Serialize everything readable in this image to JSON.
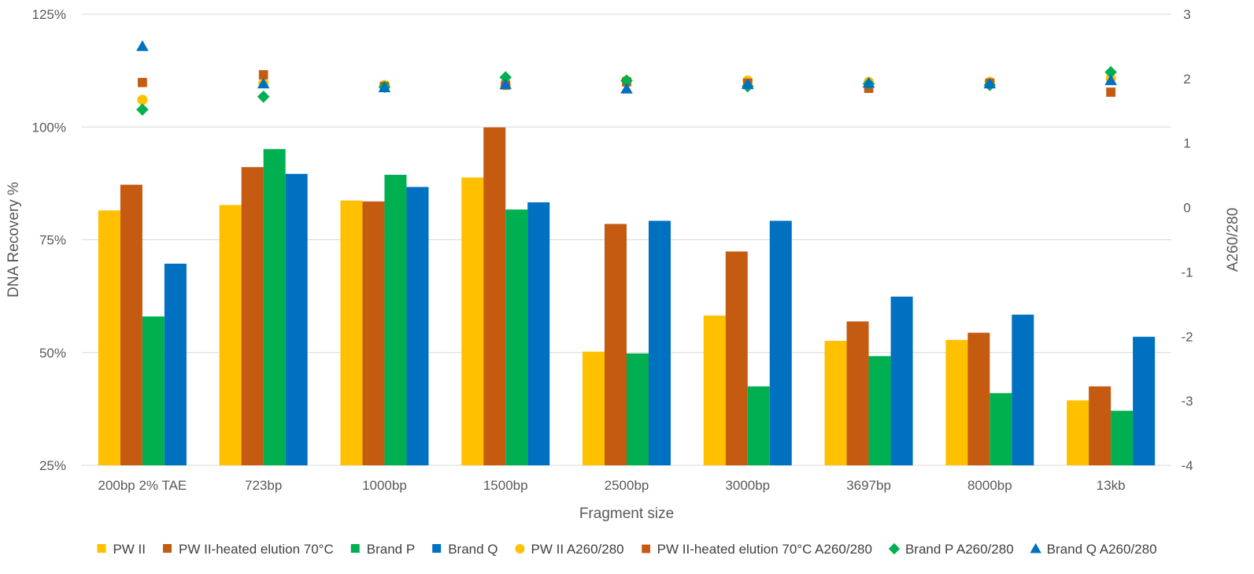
{
  "chart_data": {
    "type": "bar",
    "xlabel": "Fragment size",
    "ylabel": "DNA Recovery %",
    "y2label": "A260/280",
    "categories": [
      "200bp 2% TAE",
      "723bp",
      "1000bp",
      "1500bp",
      "2500bp",
      "3000bp",
      "3697bp",
      "8000bp",
      "13kb"
    ],
    "ylim": [
      25,
      125
    ],
    "yticks": [
      25,
      50,
      75,
      100,
      125
    ],
    "ytick_labels": [
      "25%",
      "50%",
      "75%",
      "100%",
      "125%"
    ],
    "y2lim": [
      -4,
      3
    ],
    "y2ticks": [
      -4,
      -3,
      -2,
      -1,
      0,
      1,
      2,
      3
    ],
    "y2tick_labels": [
      "-4",
      "-3",
      "-2",
      "-1",
      "0",
      "1",
      "2",
      "3"
    ],
    "grid": true,
    "legend_position": "bottom",
    "bar_series": [
      {
        "name": "PW II",
        "color": "#FFC000",
        "values": [
          81.5,
          82.7,
          83.7,
          88.8,
          50.2,
          58.2,
          52.6,
          52.8,
          39.4
        ]
      },
      {
        "name": "PW II-heated elution 70°C",
        "color": "#C55A11",
        "values": [
          87.2,
          91.1,
          83.5,
          99.9,
          78.5,
          72.4,
          56.9,
          54.4,
          42.5
        ]
      },
      {
        "name": "Brand P",
        "color": "#00B050",
        "values": [
          58.0,
          95.1,
          89.4,
          81.7,
          49.8,
          42.5,
          49.2,
          41.0,
          37.1
        ]
      },
      {
        "name": "Brand Q",
        "color": "#0070C0",
        "values": [
          69.7,
          89.6,
          86.7,
          83.3,
          79.2,
          79.2,
          62.4,
          58.4,
          53.5
        ]
      }
    ],
    "scatter_series": [
      {
        "name": "PW II A260/280",
        "color": "#FFC000",
        "marker": "circle",
        "values": [
          1.67,
          1.93,
          1.9,
          1.9,
          1.97,
          1.97,
          1.95,
          1.95,
          2.0
        ]
      },
      {
        "name": "PW II-heated elution 70°C A260/280",
        "color": "#C55A11",
        "marker": "square",
        "values": [
          1.94,
          2.06,
          1.88,
          1.9,
          1.95,
          1.93,
          1.85,
          1.93,
          1.79
        ]
      },
      {
        "name": "Brand P A260/280",
        "color": "#00B050",
        "marker": "diamond",
        "values": [
          1.52,
          1.72,
          1.87,
          2.02,
          1.97,
          1.88,
          1.92,
          1.9,
          2.1
        ]
      },
      {
        "name": "Brand Q A260/280",
        "color": "#0070C0",
        "marker": "triangle",
        "values": [
          2.5,
          1.92,
          1.86,
          1.91,
          1.84,
          1.91,
          1.93,
          1.92,
          1.97
        ]
      }
    ]
  }
}
